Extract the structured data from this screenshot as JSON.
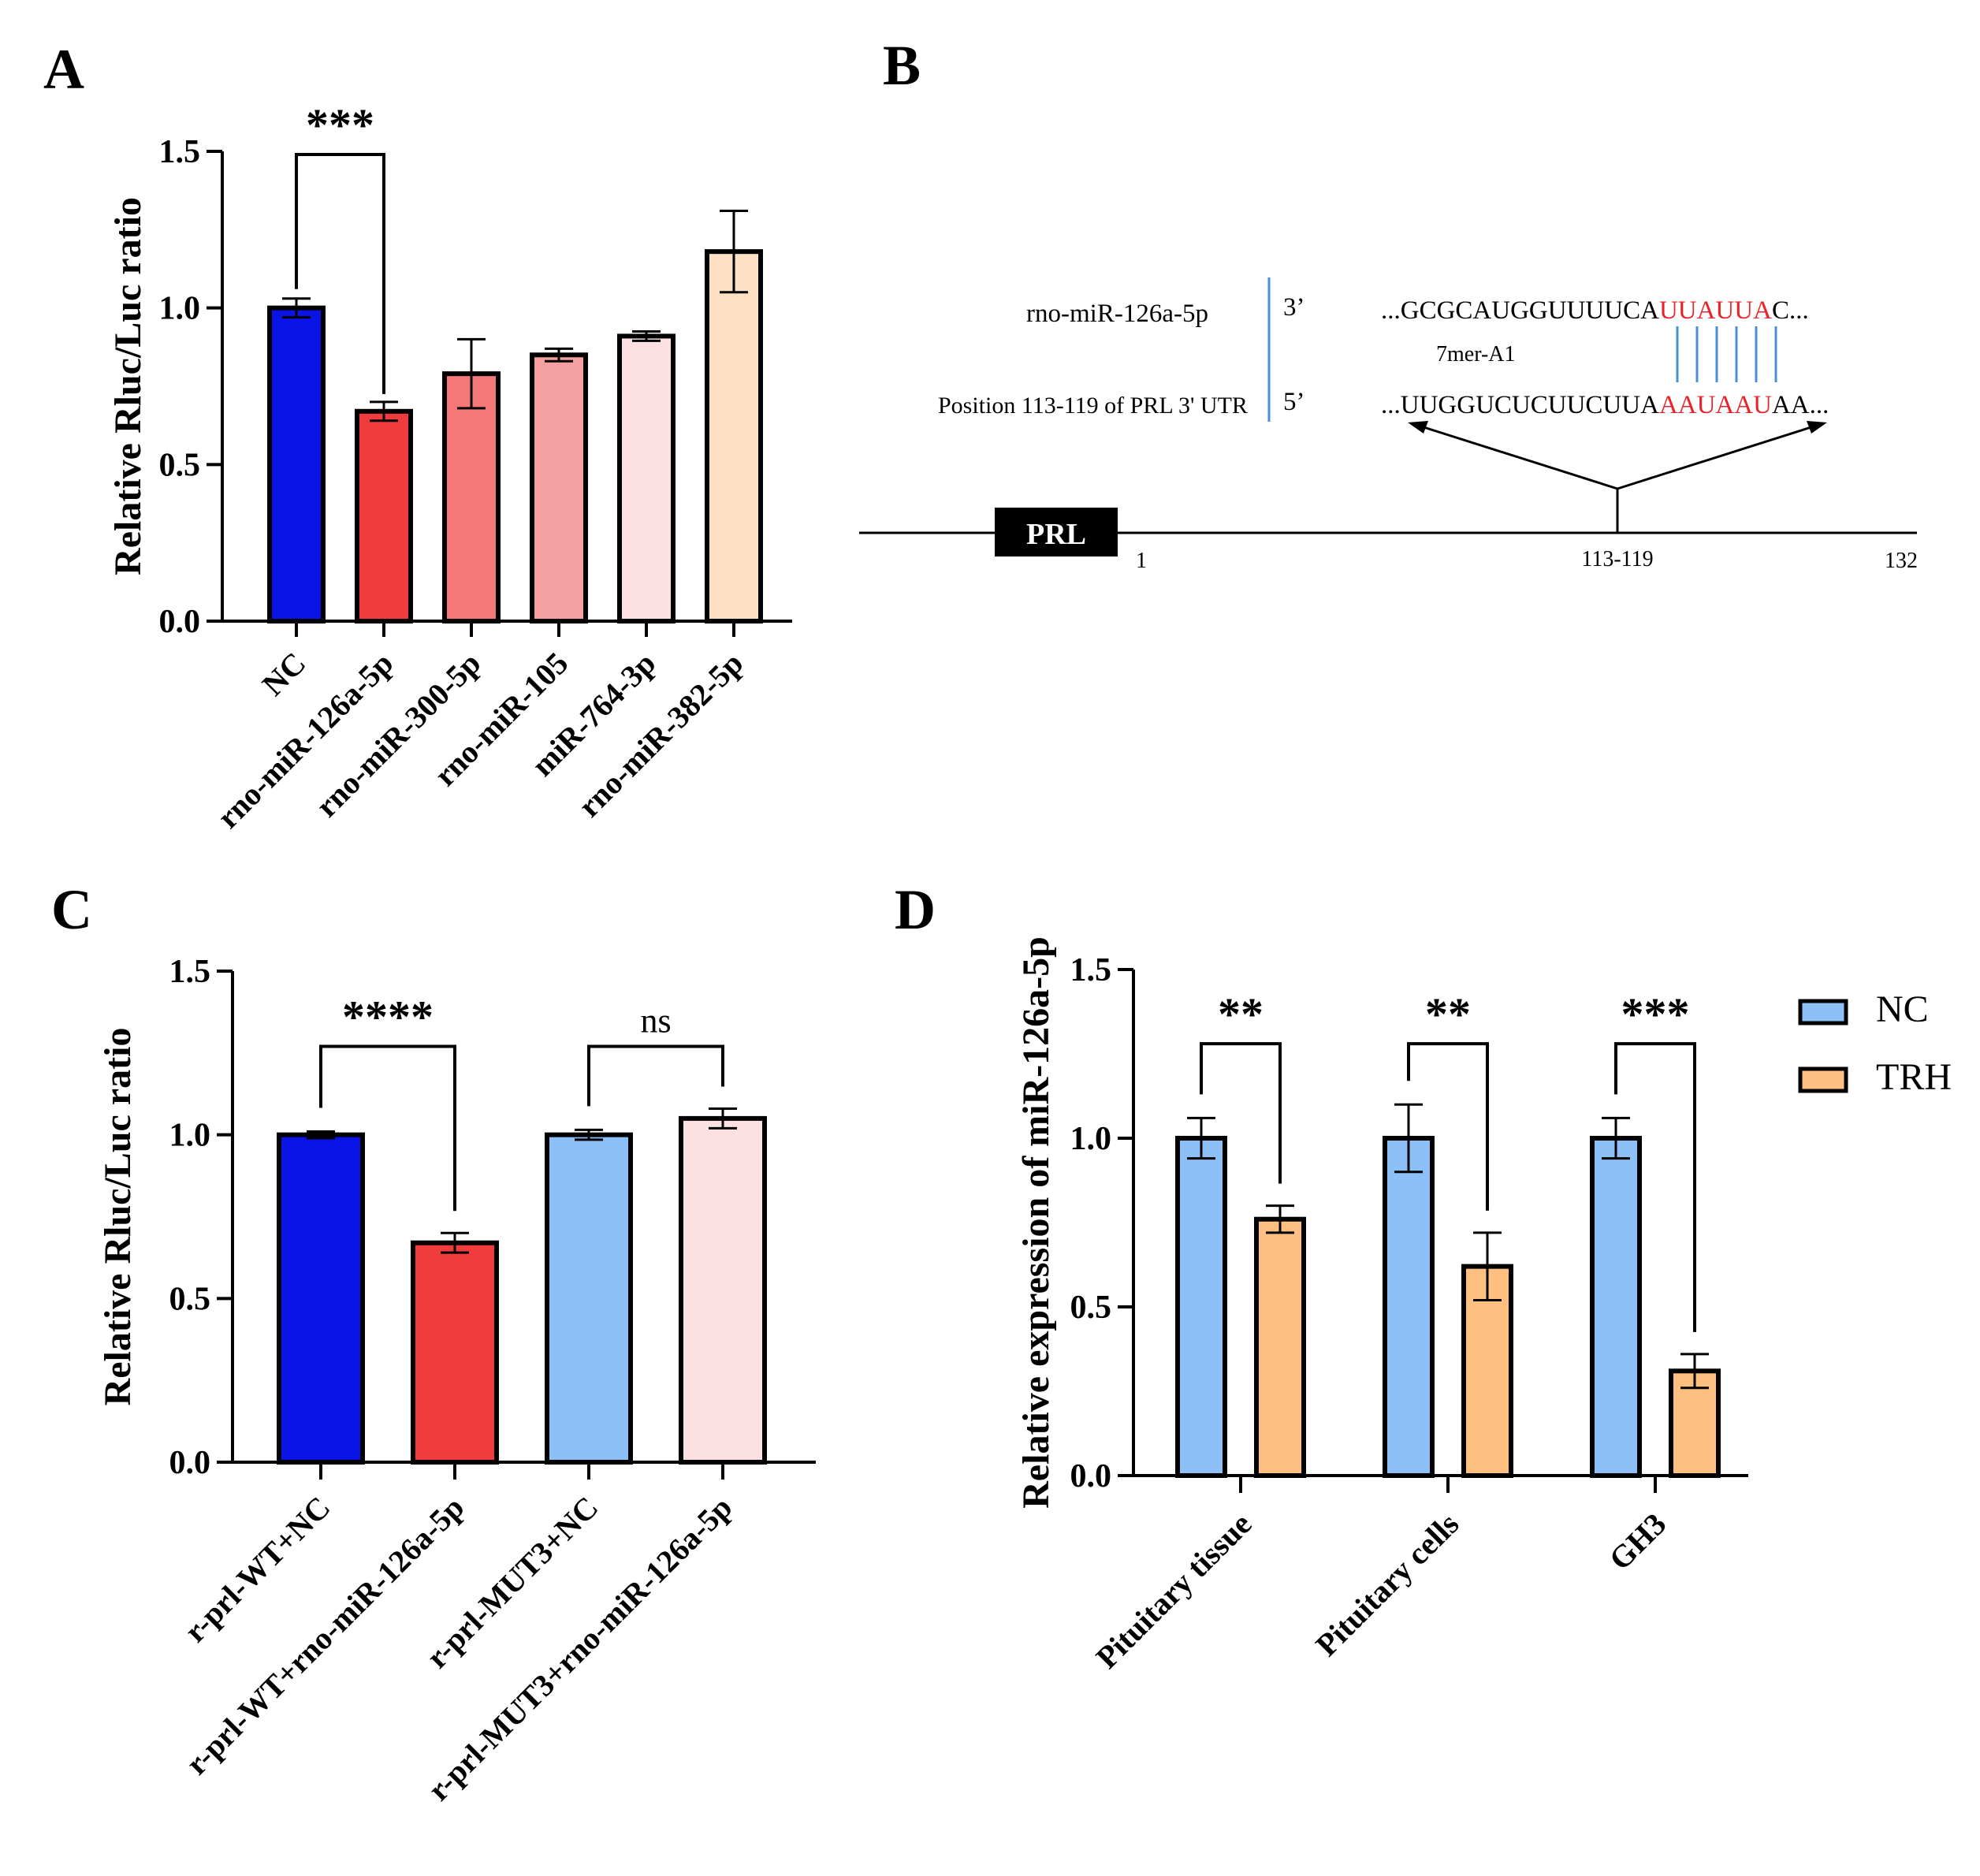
{
  "panels": {
    "A": {
      "label": "A",
      "chart_data": {
        "type": "bar",
        "title": "",
        "xlabel": "",
        "ylabel": "Relative Rluc/Luc ratio",
        "ylim": [
          0,
          1.5
        ],
        "yticks": [
          "0.0",
          "0.5",
          "1.0",
          "1.5"
        ],
        "categories": [
          "NC",
          "rno-miR-126a-5p",
          "rno-miR-300-5p",
          "rno-miR-105",
          "miR-764-3p",
          "rno-miR-382-5p"
        ],
        "values": [
          1.0,
          0.67,
          0.79,
          0.85,
          0.91,
          1.18
        ],
        "errors": [
          0.03,
          0.03,
          0.11,
          0.02,
          0.015,
          0.13
        ],
        "colors": [
          "#0a14e6",
          "#f03c3c",
          "#f47878",
          "#f5a0a0",
          "#fde0e2",
          "#fde0c4"
        ],
        "significance": [
          {
            "from": 0,
            "to": 1,
            "label": "***"
          }
        ]
      }
    },
    "B": {
      "label": "B",
      "mirna_label": "rno-miR-126a-5p",
      "utr_label": "Position 113-119 of PRL 3' UTR",
      "end3": "3’",
      "end5": "5’",
      "mirna_seq_pre": "...GCGCAUGGUUUUCA",
      "mirna_seq_seed": "UUAUUA",
      "mirna_seq_post": "C...",
      "utr_seq_pre": "...UUGGUCUCUUCUUA",
      "utr_seq_seed": "AAUAAU",
      "utr_seq_post": "AA...",
      "site_type": "7mer-A1",
      "gene_box": "PRL",
      "pos_start": "1",
      "pos_site": "113-119",
      "pos_end": "132",
      "seed_color": "#e8242a",
      "pair_color": "#4a8fd6"
    },
    "C": {
      "label": "C",
      "chart_data": {
        "type": "bar",
        "title": "",
        "xlabel": "",
        "ylabel": "Relative Rluc/Luc ratio",
        "ylim": [
          0,
          1.5
        ],
        "yticks": [
          "0.0",
          "0.5",
          "1.0",
          "1.5"
        ],
        "categories": [
          "r-prl-WT+NC",
          "r-prl-WT+rno-miR-126a-5p",
          "r-prl-MUT3+NC",
          "r-prl-MUT3+rno-miR-126a-5p"
        ],
        "values": [
          1.0,
          0.67,
          1.0,
          1.05
        ],
        "errors": [
          0.01,
          0.03,
          0.015,
          0.03
        ],
        "colors": [
          "#0a14e6",
          "#f03c3c",
          "#8ec0f8",
          "#fde0e2"
        ],
        "significance": [
          {
            "from": 0,
            "to": 1,
            "label": "****"
          },
          {
            "from": 2,
            "to": 3,
            "label": "ns"
          }
        ]
      }
    },
    "D": {
      "label": "D",
      "chart_data": {
        "type": "bar",
        "title": "",
        "xlabel": "",
        "ylabel": "Relative expression of miR-126a-5p",
        "ylim": [
          0,
          1.5
        ],
        "yticks": [
          "0.0",
          "0.5",
          "1.0",
          "1.5"
        ],
        "categories": [
          "Pituitary tissue",
          "Pituitary cells",
          "GH3"
        ],
        "series": [
          {
            "name": "NC",
            "values": [
              1.0,
              1.0,
              1.0
            ],
            "errors": [
              0.06,
              0.1,
              0.06
            ],
            "color": "#8ec0f8"
          },
          {
            "name": "TRH",
            "values": [
              0.76,
              0.62,
              0.31
            ],
            "errors": [
              0.04,
              0.1,
              0.05
            ],
            "color": "#fdc080"
          }
        ],
        "significance": [
          {
            "group": 0,
            "label": "**"
          },
          {
            "group": 1,
            "label": "**"
          },
          {
            "group": 2,
            "label": "***"
          }
        ],
        "legend_position": "right"
      }
    }
  }
}
